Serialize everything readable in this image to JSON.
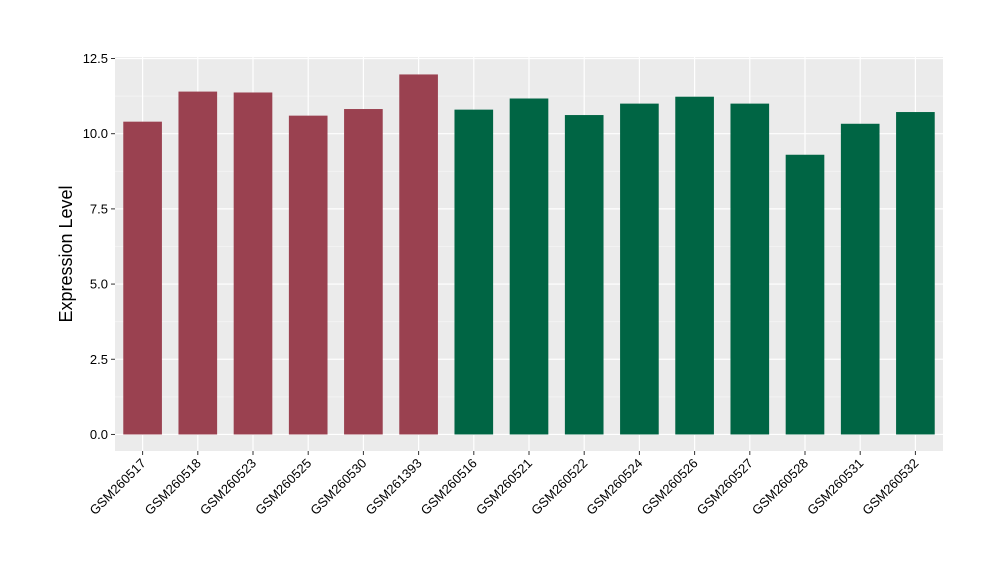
{
  "chart_data": {
    "type": "bar",
    "ylabel": "Expression Level",
    "xlabel": "",
    "ylim": [
      -0.55,
      12.55
    ],
    "yticks": [
      0.0,
      2.5,
      5.0,
      7.5,
      10.0,
      12.5
    ],
    "ytick_labels": [
      "0.0",
      "2.5",
      "5.0",
      "7.5",
      "10.0",
      "12.5"
    ],
    "grid": true,
    "panel_color": "#EBEBEB",
    "grid_color": "#FFFFFF",
    "group_colors": [
      "#9A4150",
      "#006544"
    ],
    "categories": [
      "GSM260517",
      "GSM260518",
      "GSM260523",
      "GSM260525",
      "GSM260530",
      "GSM261393",
      "GSM260516",
      "GSM260521",
      "GSM260522",
      "GSM260524",
      "GSM260526",
      "GSM260527",
      "GSM260528",
      "GSM260531",
      "GSM260532"
    ],
    "values": [
      10.4,
      11.4,
      11.37,
      10.6,
      10.82,
      11.97,
      10.8,
      11.17,
      10.62,
      11.0,
      11.23,
      11.0,
      9.3,
      10.33,
      10.72
    ],
    "groups": [
      0,
      0,
      0,
      0,
      0,
      0,
      1,
      1,
      1,
      1,
      1,
      1,
      1,
      1,
      1
    ]
  }
}
